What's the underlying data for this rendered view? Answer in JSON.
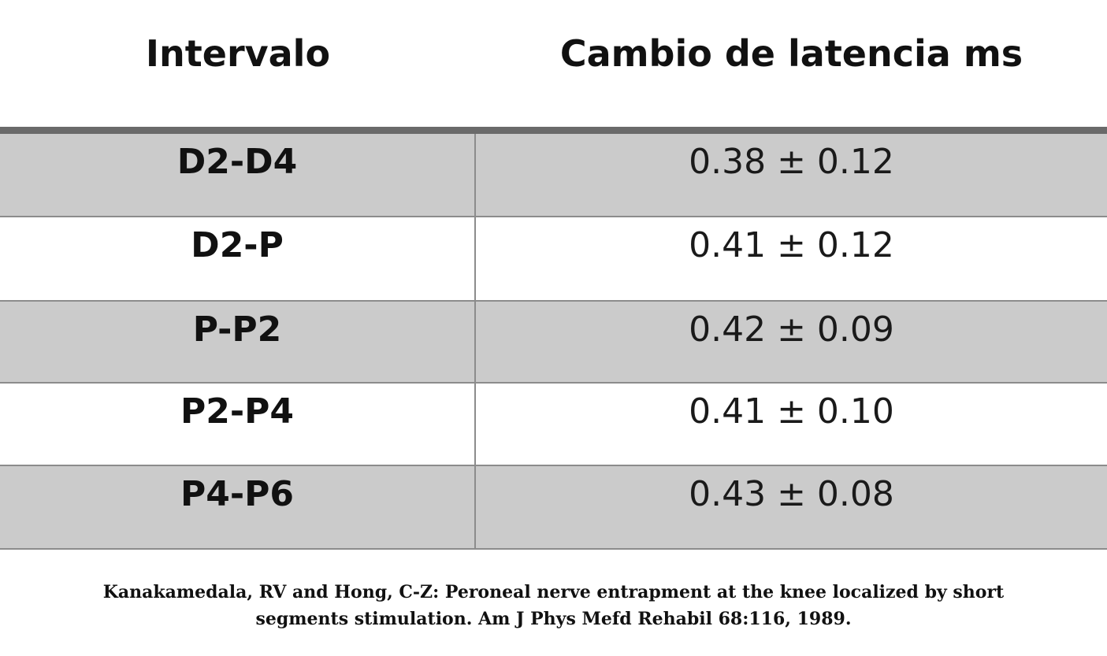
{
  "table": {
    "headers": [
      "Intervalo",
      "Cambio de latencia ms"
    ],
    "rows": [
      {
        "interval": "D2-D4",
        "change": "0.38 ± 0.12"
      },
      {
        "interval": "D2-P",
        "change": "0.41 ± 0.12"
      },
      {
        "interval": "P-P2",
        "change": "0.42 ± 0.09"
      },
      {
        "interval": "P2-P4",
        "change": "0.41 ± 0.10"
      },
      {
        "interval": "P4-P6",
        "change": "0.43 ± 0.08"
      }
    ]
  },
  "citation": {
    "line1": "Kanakamedala, RV and Hong, C-Z: Peroneal nerve entrapment at the knee localized by short",
    "line2": "segments stimulation. Am J Phys Mefd Rehabil 68:116, 1989."
  },
  "colors": {
    "row_shade": "#cbcbcb",
    "header_rule": "#6a6a6a",
    "grid_line": "#8c8c8c"
  }
}
